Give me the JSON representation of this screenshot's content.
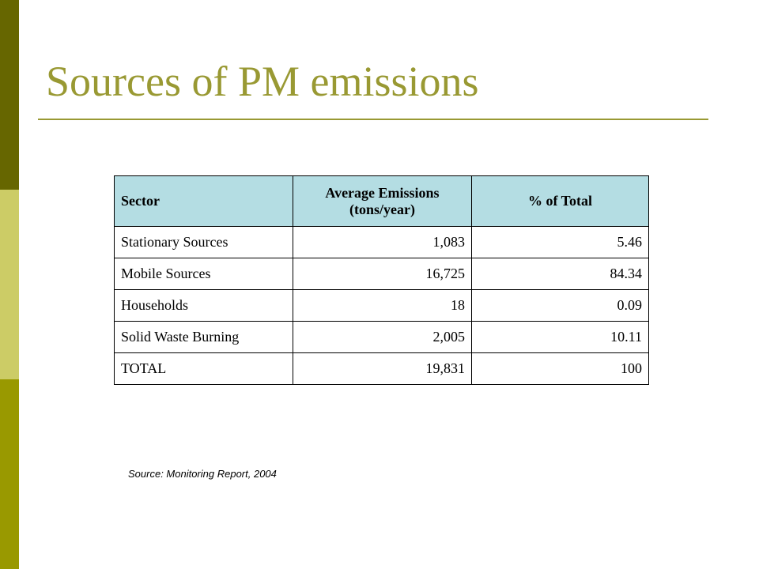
{
  "slide": {
    "title": "Sources of PM emissions",
    "source": "Source: Monitoring Report, 2004",
    "colors": {
      "title": "#999933",
      "sidebar_top": "#666600",
      "sidebar_middle": "#cccc66",
      "sidebar_bottom": "#999900",
      "header_fill": "#b4dde3"
    }
  },
  "table": {
    "headers": [
      "Sector",
      "Average Emissions (tons/year)",
      "% of Total"
    ],
    "rows": [
      [
        "Stationary Sources",
        "1,083",
        "5.46"
      ],
      [
        "Mobile Sources",
        "16,725",
        "84.34"
      ],
      [
        "Households",
        "18",
        "0.09"
      ],
      [
        "Solid Waste Burning",
        "2,005",
        "10.11"
      ],
      [
        "TOTAL",
        "19,831",
        "100"
      ]
    ]
  }
}
